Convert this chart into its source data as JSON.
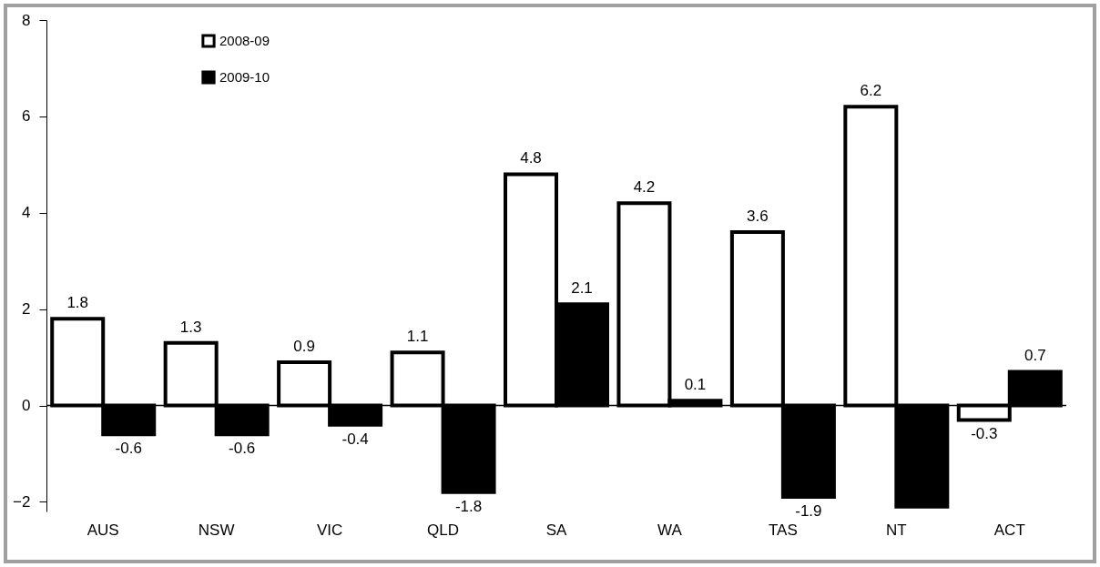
{
  "chart_data": {
    "type": "bar",
    "categories": [
      "AUS",
      "NSW",
      "VIC",
      "QLD",
      "SA",
      "WA",
      "TAS",
      "NT",
      "ACT"
    ],
    "series": [
      {
        "name": "2008-09",
        "color": "#ffffff",
        "values": [
          1.8,
          1.3,
          0.9,
          1.1,
          4.8,
          4.2,
          3.6,
          6.2,
          -0.3
        ],
        "value_labels": [
          "1.8",
          "1.3",
          "0.9",
          "1.1",
          "4.8",
          "4.2",
          "3.6",
          "6.2",
          "-0.3"
        ]
      },
      {
        "name": "2009-10",
        "color": "#000000",
        "values": [
          -0.6,
          -0.6,
          -0.4,
          -1.8,
          2.1,
          0.1,
          -1.9,
          -2.1,
          0.7
        ],
        "value_labels": [
          "-0.6",
          "-0.6",
          "-0.4",
          "-1.8",
          "2.1",
          "0.1",
          "-1.9",
          null,
          "0.7"
        ]
      }
    ],
    "ylim": [
      -2.2,
      8
    ],
    "yticks": [
      -2,
      0,
      2,
      4,
      6,
      8
    ],
    "legend": "top left"
  }
}
